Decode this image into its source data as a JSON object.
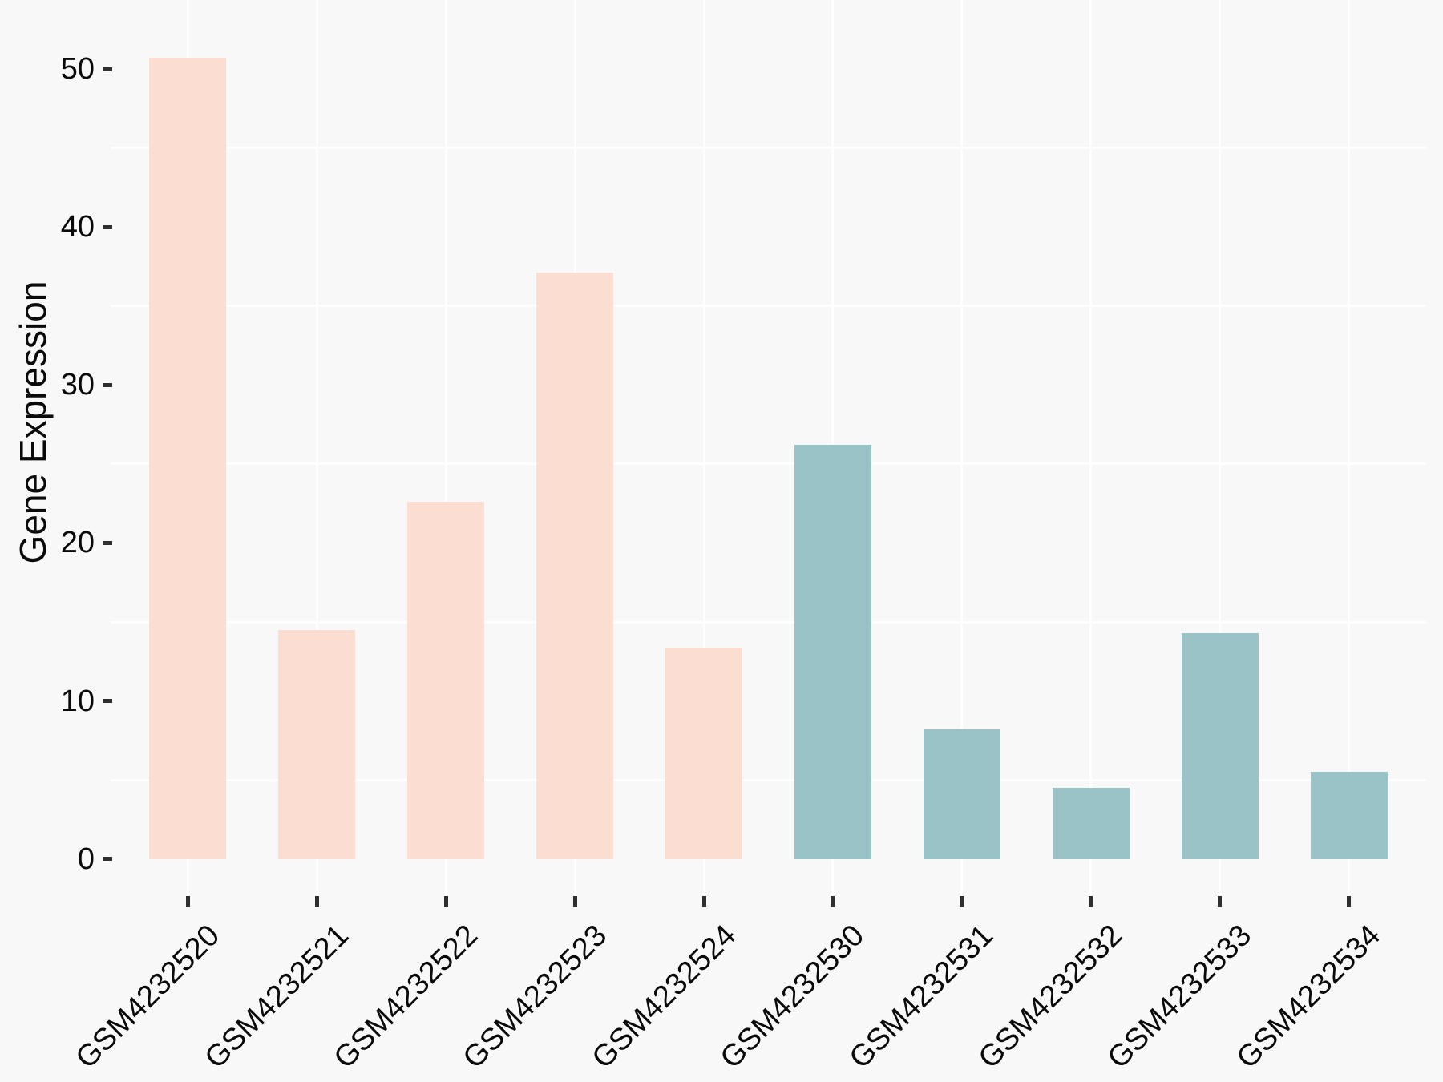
{
  "figure": {
    "background_color": "#f8f8f8",
    "gridline_color": "#ffffff",
    "tick_color": "#2f2f2f",
    "text_color": "#0a0a0a"
  },
  "chart_data": {
    "type": "bar",
    "title": "",
    "xlabel": "",
    "ylabel": "Gene Expression",
    "categories": [
      "GSM4232520",
      "GSM4232521",
      "GSM4232522",
      "GSM4232523",
      "GSM4232524",
      "GSM4232530",
      "GSM4232531",
      "GSM4232532",
      "GSM4232533",
      "GSM4232534"
    ],
    "values": [
      50.7,
      14.5,
      22.6,
      37.1,
      13.4,
      26.2,
      8.2,
      4.5,
      14.3,
      5.5
    ],
    "groups": [
      "group1",
      "group1",
      "group1",
      "group1",
      "group1",
      "group2",
      "group2",
      "group2",
      "group2",
      "group2"
    ],
    "group_colors": {
      "group1": "#fcddd1",
      "group2": "#99c3c6"
    },
    "y_ticks": [
      0,
      10,
      20,
      30,
      40,
      50
    ],
    "y_minor_gridlines": [
      5,
      15,
      25,
      35,
      45
    ],
    "ylim": [
      0,
      54
    ],
    "grid": "white minor horizontal lines and vertical category lines on light gray panel",
    "legend": "none",
    "x_tick_label_rotation_deg": 45
  }
}
